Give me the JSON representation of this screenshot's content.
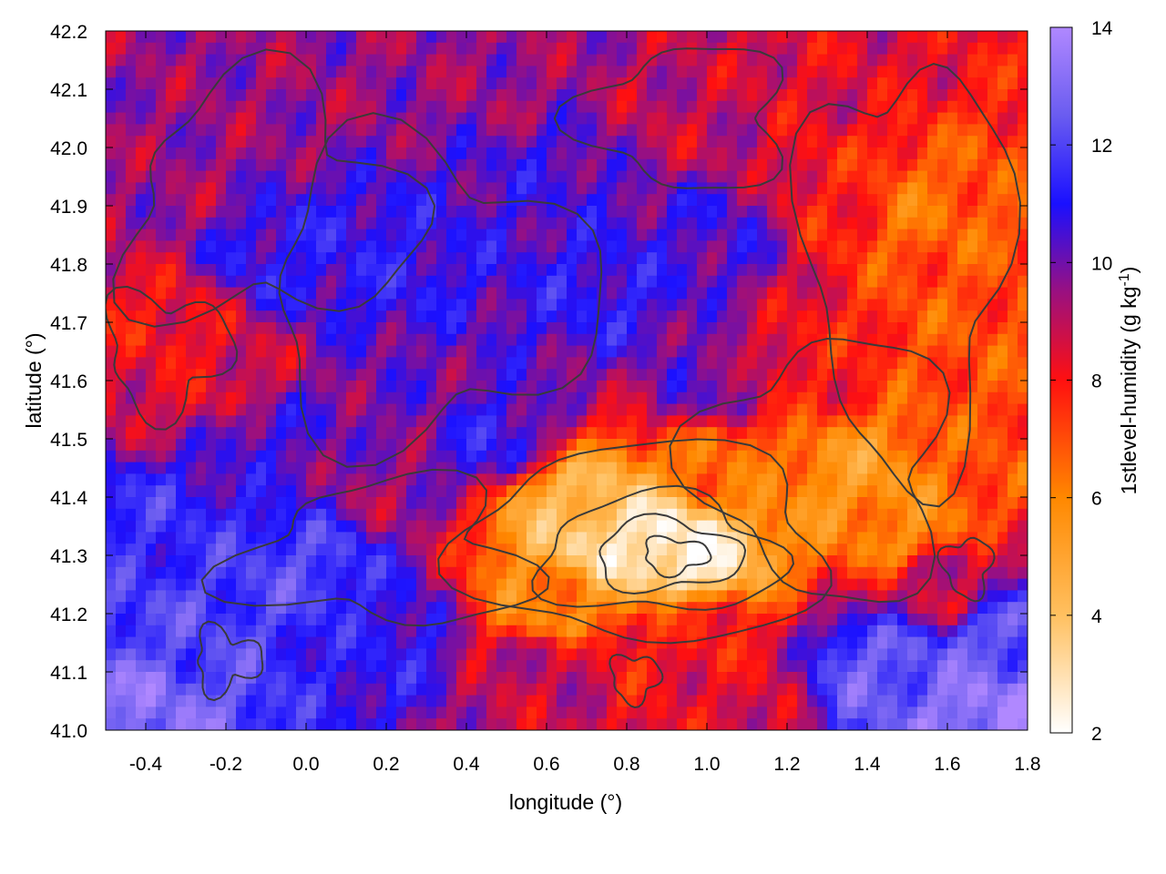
{
  "chart_data": {
    "type": "heatmap",
    "title": "",
    "xlabel": "longitude (°)",
    "ylabel": "latitude (°)",
    "xlim": [
      -0.5,
      1.8
    ],
    "ylim": [
      41.0,
      42.2
    ],
    "x_ticks": [
      "-0.4",
      "-0.2",
      "0.0",
      "0.2",
      "0.4",
      "0.6",
      "0.8",
      "1.0",
      "1.2",
      "1.4",
      "1.6",
      "1.8"
    ],
    "x_tick_values": [
      -0.4,
      -0.2,
      0.0,
      0.2,
      0.4,
      0.6,
      0.8,
      1.0,
      1.2,
      1.4,
      1.6,
      1.8
    ],
    "y_ticks": [
      "41.0",
      "41.1",
      "41.2",
      "41.3",
      "41.4",
      "41.5",
      "41.6",
      "41.7",
      "41.8",
      "41.9",
      "42.0",
      "42.1",
      "42.2"
    ],
    "y_tick_values": [
      41.0,
      41.1,
      41.2,
      41.3,
      41.4,
      41.5,
      41.6,
      41.7,
      41.8,
      41.9,
      42.0,
      42.1,
      42.2
    ],
    "colorbar": {
      "label_main": "1stlevel-humidity (g kg",
      "label_exp": "-1",
      "label_end": ")",
      "range": [
        2,
        14
      ],
      "ticks": [
        "2",
        "4",
        "6",
        "8",
        "10",
        "12",
        "14"
      ],
      "tick_values": [
        2,
        4,
        6,
        8,
        10,
        12,
        14
      ],
      "palette": [
        {
          "v": 2,
          "color": "#ffffff"
        },
        {
          "v": 4,
          "color": "#ffc060"
        },
        {
          "v": 6,
          "color": "#ff8800"
        },
        {
          "v": 8,
          "color": "#ff1010"
        },
        {
          "v": 9.5,
          "color": "#9a1080"
        },
        {
          "v": 11,
          "color": "#1a10ff"
        },
        {
          "v": 12.5,
          "color": "#6a5cf0"
        },
        {
          "v": 14,
          "color": "#b088ff"
        }
      ]
    },
    "field_features": [
      {
        "lon": 0.93,
        "lat": 41.31,
        "value": 2.5
      },
      {
        "lon": 0.76,
        "lat": 41.33,
        "value": 3
      },
      {
        "lon": 0.65,
        "lat": 41.38,
        "value": 4.5
      },
      {
        "lon": 0.62,
        "lat": 41.22,
        "value": 6
      },
      {
        "lon": 1.05,
        "lat": 41.45,
        "value": 6.5
      },
      {
        "lon": 1.38,
        "lat": 41.44,
        "value": 5.5
      },
      {
        "lon": 1.5,
        "lat": 41.35,
        "value": 6
      },
      {
        "lon": 1.5,
        "lat": 41.9,
        "value": 6.5
      },
      {
        "lon": 1.62,
        "lat": 41.68,
        "value": 7
      },
      {
        "lon": 1.25,
        "lat": 41.62,
        "value": 8
      },
      {
        "lon": 1.35,
        "lat": 41.92,
        "value": 8
      },
      {
        "lon": 1.7,
        "lat": 41.5,
        "value": 7
      },
      {
        "lon": 0.95,
        "lat": 41.15,
        "value": 8
      },
      {
        "lon": 1.05,
        "lat": 41.05,
        "value": 8.5
      },
      {
        "lon": 0.6,
        "lat": 41.1,
        "value": 9
      },
      {
        "lon": -0.37,
        "lat": 41.68,
        "value": 8
      },
      {
        "lon": -0.22,
        "lat": 41.6,
        "value": 8.5
      },
      {
        "lon": -0.44,
        "lat": 41.62,
        "value": 8.5
      },
      {
        "lon": -0.3,
        "lat": 41.95,
        "value": 9.5
      },
      {
        "lon": 0.0,
        "lat": 42.1,
        "value": 9.5
      },
      {
        "lon": 0.3,
        "lat": 41.55,
        "value": 10
      },
      {
        "lon": 0.5,
        "lat": 42.12,
        "value": 9.5
      },
      {
        "lon": 0.95,
        "lat": 42.05,
        "value": 9
      },
      {
        "lon": 1.3,
        "lat": 42.12,
        "value": 8.5
      },
      {
        "lon": 0.2,
        "lat": 41.42,
        "value": 9.5
      },
      {
        "lon": -0.05,
        "lat": 41.82,
        "value": 11
      },
      {
        "lon": 0.2,
        "lat": 41.8,
        "value": 11
      },
      {
        "lon": 0.45,
        "lat": 41.5,
        "value": 11
      },
      {
        "lon": 0.75,
        "lat": 41.75,
        "value": 11
      },
      {
        "lon": 1.0,
        "lat": 41.85,
        "value": 10.5
      },
      {
        "lon": 0.0,
        "lat": 41.28,
        "value": 12
      },
      {
        "lon": -0.3,
        "lat": 41.15,
        "value": 12
      },
      {
        "lon": -0.4,
        "lat": 41.05,
        "value": 13
      },
      {
        "lon": -0.4,
        "lat": 41.35,
        "value": 11.5
      },
      {
        "lon": 0.2,
        "lat": 41.15,
        "value": 11
      },
      {
        "lon": 1.45,
        "lat": 41.1,
        "value": 12.5
      },
      {
        "lon": 1.7,
        "lat": 41.02,
        "value": 13.5
      },
      {
        "lon": 1.75,
        "lat": 41.15,
        "value": 12.5
      },
      {
        "lon": 1.6,
        "lat": 41.25,
        "value": 9
      },
      {
        "lon": 1.0,
        "lat": 41.6,
        "value": 10
      },
      {
        "lon": 0.6,
        "lat": 41.95,
        "value": 10.5
      },
      {
        "lon": -0.1,
        "lat": 41.5,
        "value": 10.5
      }
    ]
  }
}
